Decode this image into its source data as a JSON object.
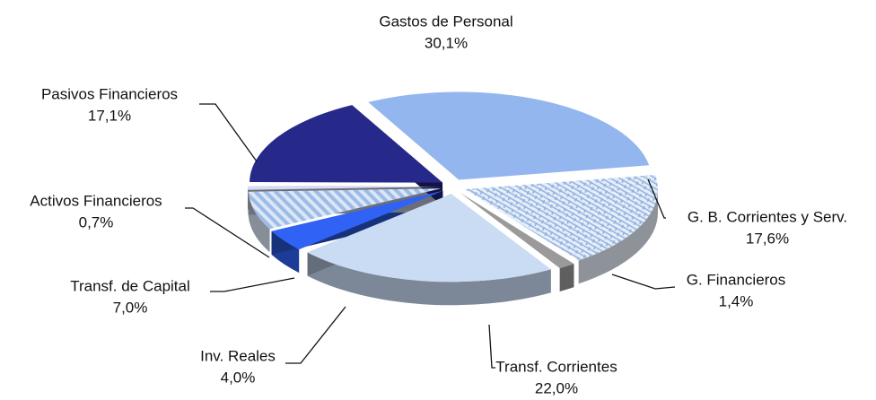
{
  "chart_data": {
    "type": "pie",
    "categories": [
      "Gastos de Personal",
      "G. B. Corrientes y Serv.",
      "G. Financieros",
      "Transf. Corrientes",
      "Inv. Reales",
      "Transf. de Capital",
      "Activos Financieros",
      "Pasivos Financieros"
    ],
    "values": [
      30.1,
      17.6,
      1.4,
      22.0,
      4.0,
      7.0,
      0.7,
      17.1
    ],
    "value_labels": [
      "30,1%",
      "17,6%",
      "1,4%",
      "22,0%",
      "4,0%",
      "7,0%",
      "0,7%",
      "17,1%"
    ],
    "colors": [
      "#93b6ee",
      "#e6eef9",
      "#9a9a9a",
      "#c9dcf4",
      "#2f62f5",
      "#dbe6f6",
      "#d6dcf2",
      "#27298a"
    ]
  }
}
